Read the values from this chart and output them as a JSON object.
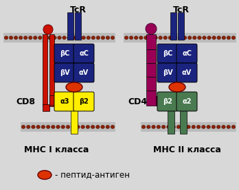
{
  "bg_color": "#d8d8d8",
  "dark_blue": "#1a237e",
  "yellow": "#ffee00",
  "red": "#cc1100",
  "magenta": "#990055",
  "green": "#4a7a50",
  "orange_red": "#dd3300",
  "membrane_dot_color": "#882200",
  "membrane_bg": "#bbbbbb",
  "title_left": "МНС I класса",
  "title_right": "МНС II класса",
  "label_left": "CD8",
  "label_right": "CD4",
  "tcr": "TcR",
  "legend_text": "- пептид-антиген",
  "bc": "βC",
  "ac": "αC",
  "bv": "βV",
  "av": "αV",
  "a3": "α3",
  "b2_yellow": "β2",
  "b2_green": "β2",
  "a2": "α2"
}
